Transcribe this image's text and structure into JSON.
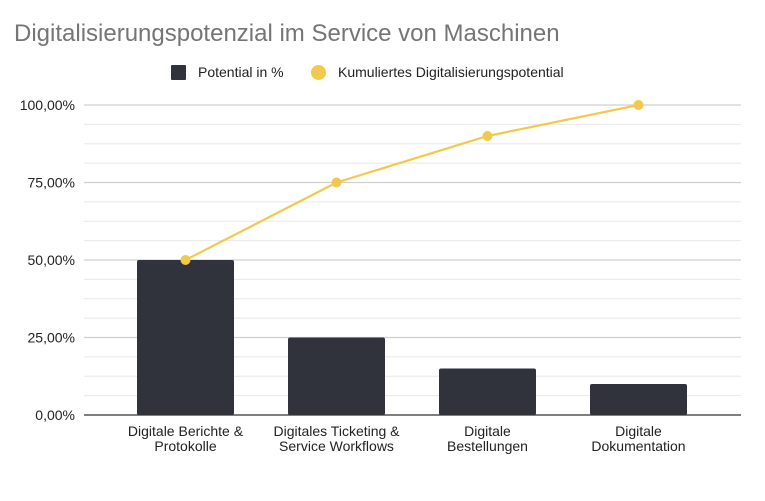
{
  "chart_data": {
    "type": "bar",
    "title": "Digitalisierungspotenzial im Service von Maschinen",
    "xlabel": "",
    "ylabel": "",
    "ylim": [
      0,
      100
    ],
    "yticks": [
      0,
      25,
      50,
      75,
      100
    ],
    "ytick_labels": [
      "0,00%",
      "25,00%",
      "50,00%",
      "75,00%",
      "100,00%"
    ],
    "minor_grid_step": 6.25,
    "grid": true,
    "legend_position": "top-center",
    "categories": [
      [
        "Digitale Berichte &",
        "Protokolle"
      ],
      [
        "Digitales Ticketing &",
        "Service Workflows"
      ],
      [
        "Digitale",
        "Bestellungen"
      ],
      [
        "Digitale",
        "Dokumentation"
      ]
    ],
    "series": [
      {
        "name": "Potential in %",
        "type": "bar",
        "color": "#31333c",
        "values": [
          50,
          25,
          15,
          10
        ]
      },
      {
        "name": "Kumuliertes Digitalisierungspotential",
        "type": "line",
        "color": "#f2c94c",
        "values": [
          50,
          75,
          90,
          100
        ]
      }
    ]
  }
}
